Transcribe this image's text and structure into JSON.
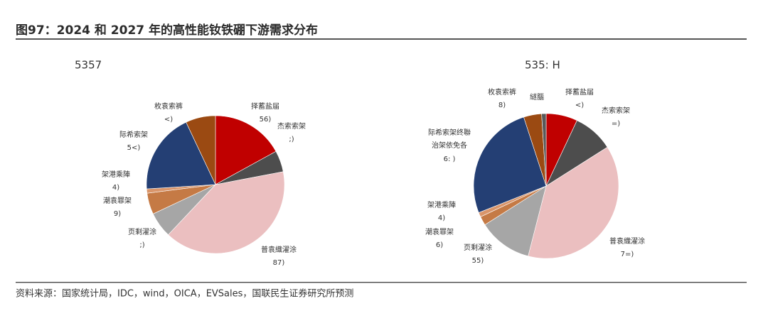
{
  "header": {
    "title": "图97：2024 和 2027 年的高性能钕铁硼下游需求分布"
  },
  "footer": {
    "source": "资料来源：国家统计局，IDC，wind，OICA，EVSales，国联民生证券研究所预测"
  },
  "chart_data": [
    {
      "type": "pie",
      "title": "5357",
      "categories": [
        "择蓄盐届",
        "杰索索架",
        "普袁織濯涂",
        "页剩濯涂",
        "潮袁罪架",
        "架港乘陣",
        "际希索架",
        "枚袁索裤"
      ],
      "values": [
        17,
        5,
        40,
        6,
        5,
        1,
        19,
        7
      ],
      "value_labels": [
        "56)",
        ";)",
        "87)",
        ";)",
        "9)",
        "4)",
        "5<)",
        "<)"
      ],
      "colors": [
        "#c00000",
        "#4d4d4d",
        "#ebbfc0",
        "#a6a6a6",
        "#c57a45",
        "#d9956a",
        "#243f74",
        "#9b4a12"
      ]
    },
    {
      "type": "pie",
      "title": "535: H",
      "categories": [
        "择蓄盐届",
        "杰索索架",
        "普袁織濯涂",
        "页剩濯涂",
        "潮袁罪架",
        "架港乘陣",
        "际希索架终聯治架依免各",
        "枚袁索裤",
        "繸腦"
      ],
      "values": [
        7,
        9,
        38,
        12,
        2,
        1,
        26,
        4,
        1
      ],
      "value_labels": [
        "<)",
        "=)",
        "7=)",
        "55)",
        "6)",
        "4)",
        "6: )",
        "8)",
        null
      ],
      "colors": [
        "#c00000",
        "#4d4d4d",
        "#ebbfc0",
        "#a6a6a6",
        "#c57a45",
        "#d9956a",
        "#243f74",
        "#9b4a12",
        "#595959"
      ]
    }
  ]
}
